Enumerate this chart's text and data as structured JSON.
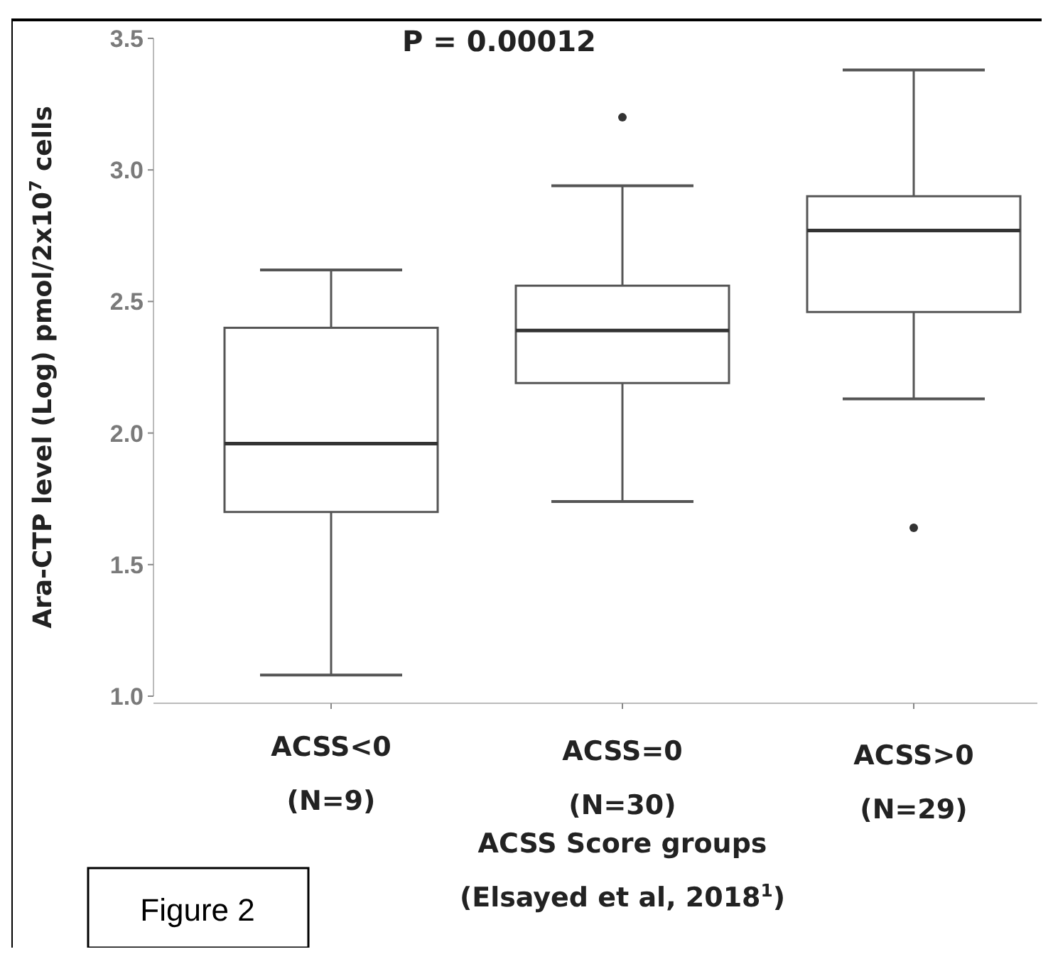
{
  "chart_data": {
    "type": "box",
    "categories": [
      "ACSS<0\n(N=9)",
      "ACSS=0\n(N=30)",
      "ACSS>0\n(N=29)"
    ],
    "boxes": [
      {
        "low": 1.08,
        "q1": 1.7,
        "median": 1.96,
        "q3": 2.4,
        "high": 2.62
      },
      {
        "low": 1.74,
        "q1": 2.19,
        "median": 2.39,
        "q3": 2.56,
        "high": 2.94,
        "outliers": [
          3.2
        ]
      },
      {
        "low": 2.13,
        "q1": 2.46,
        "median": 2.77,
        "q3": 2.9,
        "high": 3.38,
        "outliers": [
          1.64
        ]
      }
    ],
    "color": "#555555",
    "ylabel": "Ara-CTP level (Log) pmol/2x10$^{7}$ cells",
    "xlabel": "ACSS Score groups",
    "ylim": [
      1.0,
      3.5
    ],
    "yticks": [
      {
        "value": 1.0,
        "label": "1.0"
      },
      {
        "value": 1.5,
        "label": "1.5"
      },
      {
        "value": 2.0,
        "label": "2.0"
      },
      {
        "value": 2.5,
        "label": "2.5"
      },
      {
        "value": 3.0,
        "label": "3.0"
      },
      {
        "value": 3.5,
        "label": "3.5"
      }
    ],
    "grid": false,
    "annotations": [
      "P = 0.00012",
      "(Elsayed et al, 2018$^{1}$)",
      "Figure 2"
    ]
  }
}
